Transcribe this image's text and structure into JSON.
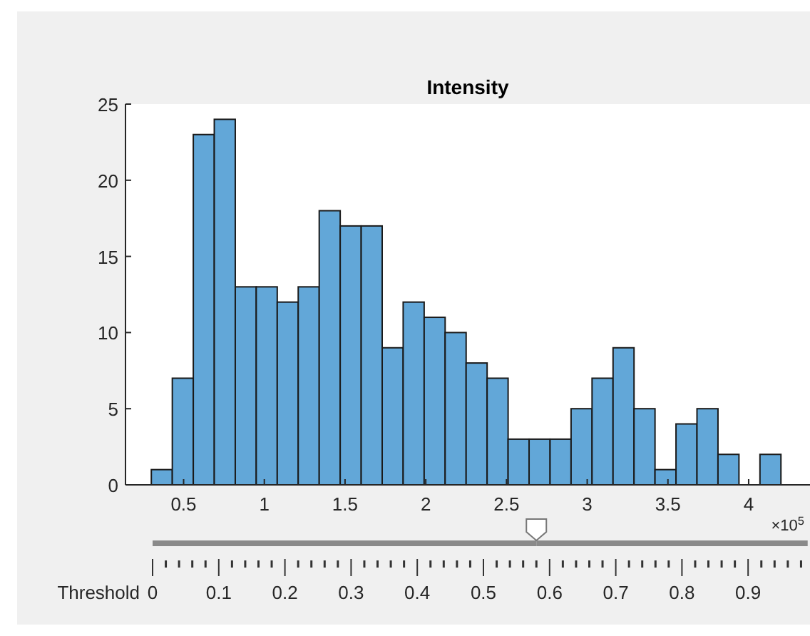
{
  "chart_data": [
    {
      "type": "histogram",
      "title": "Intensity",
      "bins": [
        0.3,
        0.43,
        0.56,
        0.69,
        0.82,
        0.95,
        1.08,
        1.21,
        1.34,
        1.47,
        1.6,
        1.73,
        1.86,
        1.99,
        2.12,
        2.25,
        2.38,
        2.51,
        2.64,
        2.77,
        2.9,
        3.03,
        3.16,
        3.29,
        3.42,
        3.55,
        3.68,
        3.81,
        3.94,
        4.07,
        4.2
      ],
      "values": [
        1,
        7,
        23,
        24,
        13,
        13,
        12,
        13,
        18,
        17,
        17,
        9,
        12,
        11,
        10,
        8,
        7,
        3,
        3,
        3,
        5,
        7,
        9,
        5,
        1,
        4,
        5,
        2,
        0,
        2
      ],
      "color": "#62a7d8",
      "xlim": [
        0.14,
        4.38
      ],
      "xticks": [
        0.5,
        1,
        1.5,
        2,
        2.5,
        3,
        3.5,
        4
      ],
      "ylim": [
        0,
        25
      ],
      "yticks": [
        0,
        5,
        10,
        15,
        20,
        25
      ],
      "annotations": [
        "×10$^{5}$"
      ],
      "grid": false
    },
    {
      "type": "bar",
      "orientation": "horizontal",
      "categories": [
        null
      ],
      "values": [
        0.58
      ],
      "color": "#8a8a8a",
      "xlabel": "Threshold",
      "xlim": [
        0,
        0.99
      ],
      "xticks": [
        0,
        {
          "value": 0.02,
          "label": null
        },
        {
          "value": 0.04,
          "label": null
        },
        {
          "value": 0.06,
          "label": null
        },
        {
          "value": 0.08,
          "label": null
        },
        0.1,
        {
          "value": 0.12,
          "label": null
        },
        {
          "value": 0.14,
          "label": null
        },
        {
          "value": 0.16,
          "label": null
        },
        {
          "value": 0.18,
          "label": null
        },
        0.2,
        {
          "value": 0.22,
          "label": null
        },
        {
          "value": 0.24,
          "label": null
        },
        {
          "value": 0.26,
          "label": null
        },
        {
          "value": 0.28,
          "label": null
        },
        0.3,
        {
          "value": 0.32,
          "label": null
        },
        {
          "value": 0.34,
          "label": null
        },
        {
          "value": 0.36,
          "label": null
        },
        {
          "value": 0.38,
          "label": null
        },
        0.4,
        {
          "value": 0.42,
          "label": null
        },
        {
          "value": 0.44,
          "label": null
        },
        {
          "value": 0.46,
          "label": null
        },
        {
          "value": 0.48,
          "label": null
        },
        0.5,
        {
          "value": 0.52,
          "label": null
        },
        {
          "value": 0.54,
          "label": null
        },
        {
          "value": 0.56,
          "label": null
        },
        {
          "value": 0.58,
          "label": null
        },
        0.6,
        {
          "value": 0.62,
          "label": null
        },
        {
          "value": 0.64,
          "label": null
        },
        {
          "value": 0.66,
          "label": null
        },
        {
          "value": 0.68,
          "label": null
        },
        0.7,
        {
          "value": 0.72,
          "label": null
        },
        {
          "value": 0.74,
          "label": null
        },
        {
          "value": 0.76,
          "label": null
        },
        {
          "value": 0.78,
          "label": null
        },
        0.8,
        {
          "value": 0.82,
          "label": null
        },
        {
          "value": 0.84,
          "label": null
        },
        {
          "value": 0.86,
          "label": null
        },
        {
          "value": 0.88,
          "label": null
        },
        0.9,
        {
          "value": 0.92,
          "label": null
        },
        {
          "value": 0.94,
          "label": null
        },
        {
          "value": 0.96,
          "label": null
        },
        {
          "value": 0.98,
          "label": null
        }
      ]
    }
  ]
}
